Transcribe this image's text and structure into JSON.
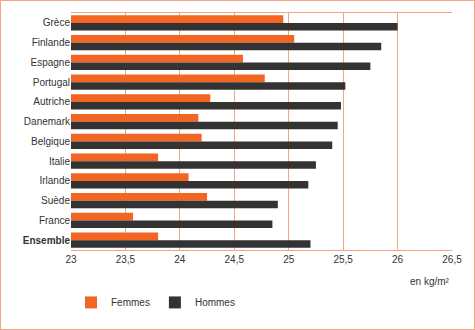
{
  "chart_data": {
    "type": "bar",
    "orientation": "horizontal",
    "categories": [
      "Grèce",
      "Finlande",
      "Espagne",
      "Portugal",
      "Autriche",
      "Danemark",
      "Belgique",
      "Italie",
      "Irlande",
      "Suède",
      "France",
      "Ensemble"
    ],
    "series": [
      {
        "name": "Femmes",
        "color": "#f26522",
        "values": [
          24.95,
          25.05,
          24.58,
          24.78,
          24.28,
          24.17,
          24.2,
          23.8,
          24.08,
          24.25,
          23.57,
          23.8
        ]
      },
      {
        "name": "Hommes",
        "color": "#333333",
        "values": [
          26.0,
          25.85,
          25.75,
          25.52,
          25.48,
          25.45,
          25.4,
          25.25,
          25.18,
          24.9,
          24.85,
          25.2
        ]
      }
    ],
    "xlabel": "en kg/m²",
    "xlim": [
      23,
      26.5
    ],
    "xticks": [
      23,
      {
        "value": 23.5,
        "label": "23,5"
      },
      24,
      {
        "value": 24.5,
        "label": "24,5"
      },
      25,
      {
        "value": 25.5,
        "label": "25,5"
      },
      26,
      {
        "value": 26.5,
        "label": "26,5"
      }
    ],
    "grid": true,
    "legend": "bottom left"
  }
}
